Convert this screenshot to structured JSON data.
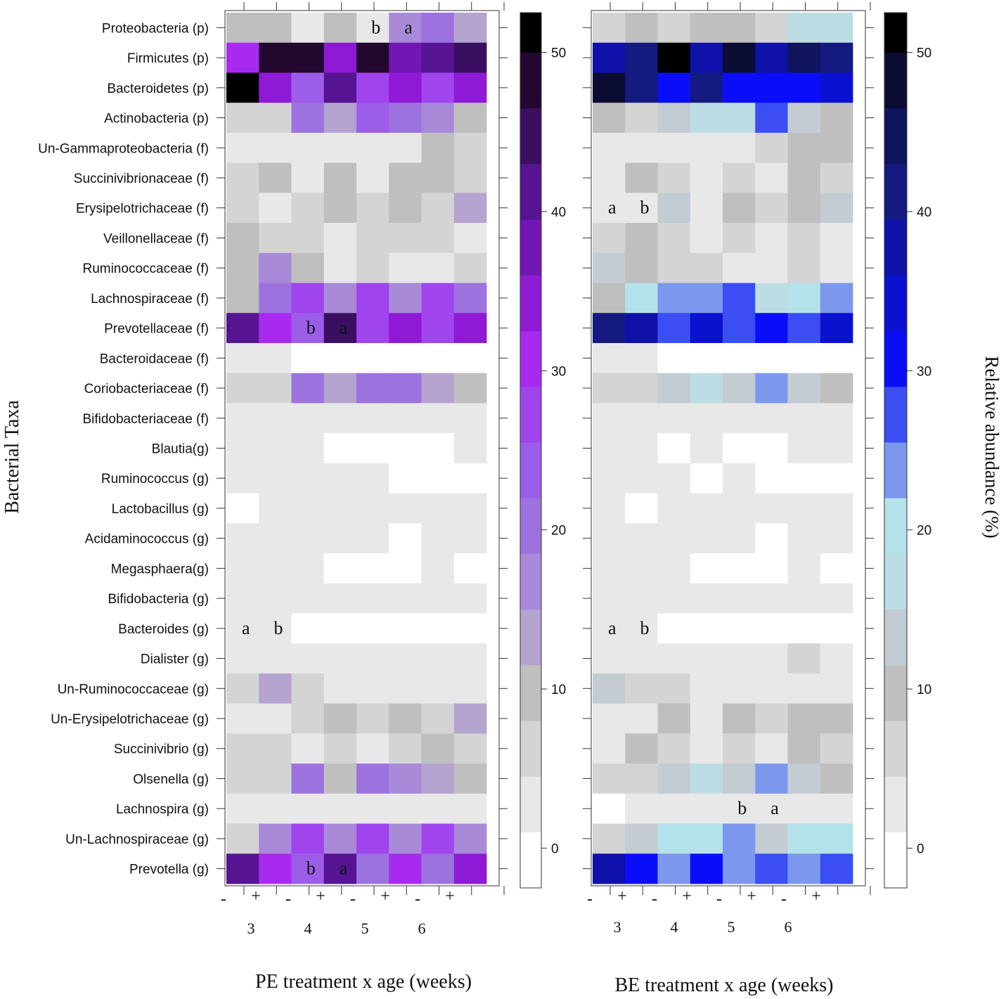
{
  "figure": {
    "ylabel": "Bacterial Taxa",
    "colorbar_label": "Relative abundance (%)"
  },
  "chart_data": [
    {
      "type": "heatmap",
      "panel": "PE",
      "xlabel": "PE treatment x age (weeks)",
      "treatment_signs": [
        "-",
        "+",
        "-",
        "+",
        "-",
        "+",
        "-",
        "+"
      ],
      "age_labels": [
        "3",
        "4",
        "5",
        "6"
      ],
      "colorbar": {
        "range": [
          -2.5,
          52.5
        ],
        "ticks": [
          0,
          10,
          20,
          30,
          40,
          50
        ],
        "bins": [
          {
            "from": -2.5,
            "to": 1,
            "color": "#ffffff"
          },
          {
            "from": 1,
            "to": 4.5,
            "color": "#e8e8e8"
          },
          {
            "from": 4.5,
            "to": 8,
            "color": "#d4d4d4"
          },
          {
            "from": 8,
            "to": 11.5,
            "color": "#bfbfbf"
          },
          {
            "from": 11.5,
            "to": 15,
            "color": "#b5a3d0"
          },
          {
            "from": 15,
            "to": 18.5,
            "color": "#a88ad8"
          },
          {
            "from": 18.5,
            "to": 22,
            "color": "#9c72de"
          },
          {
            "from": 22,
            "to": 25.5,
            "color": "#9c5de8"
          },
          {
            "from": 25.5,
            "to": 29,
            "color": "#a044ee"
          },
          {
            "from": 29,
            "to": 32.5,
            "color": "#a82af0"
          },
          {
            "from": 32.5,
            "to": 36,
            "color": "#8f1ad6"
          },
          {
            "from": 36,
            "to": 39.5,
            "color": "#7216b6"
          },
          {
            "from": 39.5,
            "to": 43,
            "color": "#561492"
          },
          {
            "from": 43,
            "to": 46.5,
            "color": "#3a0f62"
          },
          {
            "from": 46.5,
            "to": 50,
            "color": "#22082e"
          },
          {
            "from": 50,
            "to": 52.5,
            "color": "#000000"
          }
        ]
      },
      "rows": [
        {
          "taxon": "Proteobacteria (p)",
          "values": [
            9,
            10,
            3,
            10,
            2,
            18,
            19,
            14
          ],
          "annotations": [
            "",
            "",
            "",
            "",
            "b",
            "a",
            "",
            ""
          ]
        },
        {
          "taxon": "Firmicutes (p)",
          "values": [
            30,
            48,
            47,
            35,
            48,
            36,
            40,
            45
          ],
          "annotations": []
        },
        {
          "taxon": "Bacteroidetes (p)",
          "values": [
            51,
            35,
            25,
            40,
            26,
            33,
            27,
            33
          ],
          "annotations": []
        },
        {
          "taxon": "Actinobacteria (p)",
          "values": [
            6,
            6,
            20,
            14,
            24,
            21,
            17,
            10
          ],
          "annotations": []
        },
        {
          "taxon": "Un-Gammaproteobacteria (f)",
          "values": [
            3,
            3,
            3,
            3,
            3,
            3,
            10,
            6
          ],
          "annotations": []
        },
        {
          "taxon": "Succinivibrionaceae (f)",
          "values": [
            6,
            10,
            3,
            10,
            3,
            10,
            10,
            6
          ],
          "annotations": []
        },
        {
          "taxon": "Erysipelotrichaceae (f)",
          "values": [
            6,
            3,
            6,
            10,
            6,
            10,
            6,
            14
          ],
          "annotations": []
        },
        {
          "taxon": "Veillonellaceae (f)",
          "values": [
            10,
            6,
            6,
            3,
            6,
            6,
            6,
            3
          ],
          "annotations": []
        },
        {
          "taxon": "Ruminococcaceae (f)",
          "values": [
            10,
            18,
            10,
            3,
            6,
            3,
            3,
            6
          ],
          "annotations": []
        },
        {
          "taxon": "Lachnospiraceae (f)",
          "values": [
            10,
            21,
            26,
            18,
            27,
            18,
            27,
            21
          ],
          "annotations": []
        },
        {
          "taxon": "Prevotellaceae (f)",
          "values": [
            42,
            30,
            25,
            45,
            28,
            35,
            28,
            33
          ],
          "annotations": [
            "",
            "",
            "b",
            "a",
            "",
            "",
            "",
            ""
          ]
        },
        {
          "taxon": "Bacteroidaceae (f)",
          "values": [
            3,
            3,
            0,
            0,
            0,
            0,
            0,
            0
          ],
          "annotations": []
        },
        {
          "taxon": "Coriobacteriaceae (f)",
          "values": [
            6,
            6,
            20,
            14,
            21,
            20,
            14,
            10
          ],
          "annotations": []
        },
        {
          "taxon": "Bifidobacteriaceae (f)",
          "values": [
            3,
            3,
            3,
            3,
            3,
            3,
            3,
            3
          ],
          "annotations": []
        },
        {
          "taxon": "Blautia(g)",
          "values": [
            3,
            3,
            3,
            0,
            0,
            0,
            0,
            3
          ],
          "annotations": []
        },
        {
          "taxon": "Ruminococcus (g)",
          "values": [
            3,
            3,
            3,
            3,
            3,
            0,
            0,
            0
          ],
          "annotations": []
        },
        {
          "taxon": "Lactobacillus (g)",
          "values": [
            0,
            3,
            3,
            3,
            3,
            3,
            3,
            3
          ],
          "annotations": []
        },
        {
          "taxon": "Acidaminococcus (g)",
          "values": [
            3,
            3,
            3,
            3,
            3,
            0,
            3,
            3
          ],
          "annotations": []
        },
        {
          "taxon": "Megasphaera(g)",
          "values": [
            3,
            3,
            3,
            0,
            0,
            0,
            3,
            0
          ],
          "annotations": []
        },
        {
          "taxon": "Bifidobacteria (g)",
          "values": [
            3,
            3,
            3,
            3,
            3,
            3,
            3,
            3
          ],
          "annotations": []
        },
        {
          "taxon": "Bacteroides (g)",
          "values": [
            3,
            3,
            0,
            0,
            0,
            0,
            0,
            0
          ],
          "annotations": [
            "a",
            "b",
            "",
            "",
            "",
            "",
            "",
            ""
          ]
        },
        {
          "taxon": "Dialister (g)",
          "values": [
            3,
            3,
            3,
            3,
            3,
            3,
            3,
            3
          ],
          "annotations": []
        },
        {
          "taxon": "Un-Ruminococcaceae (g)",
          "values": [
            6,
            14,
            6,
            3,
            3,
            3,
            3,
            3
          ],
          "annotations": []
        },
        {
          "taxon": "Un-Erysipelotrichaceae (g)",
          "values": [
            3,
            3,
            6,
            10,
            6,
            10,
            6,
            14
          ],
          "annotations": []
        },
        {
          "taxon": "Succinivibrio (g)",
          "values": [
            6,
            6,
            3,
            6,
            3,
            6,
            10,
            6
          ],
          "annotations": []
        },
        {
          "taxon": "Olsenella (g)",
          "values": [
            6,
            6,
            21,
            10,
            21,
            18,
            14,
            10
          ],
          "annotations": []
        },
        {
          "taxon": "Lachnospira (g)",
          "values": [
            3,
            3,
            3,
            3,
            3,
            3,
            3,
            3
          ],
          "annotations": []
        },
        {
          "taxon": "Un-Lachnospiraceae (g)",
          "values": [
            6,
            18,
            27,
            18,
            27,
            18,
            27,
            18
          ],
          "annotations": []
        },
        {
          "taxon": "Prevotella (g)",
          "values": [
            40,
            30,
            25,
            40,
            21,
            30,
            20,
            33
          ],
          "annotations": [
            "",
            "",
            "b",
            "a",
            "",
            "",
            "",
            ""
          ]
        }
      ]
    },
    {
      "type": "heatmap",
      "panel": "BE",
      "xlabel": "BE treatment x age (weeks)",
      "treatment_signs": [
        "-",
        "+",
        "-",
        "+",
        "-",
        "+",
        "-",
        "+"
      ],
      "age_labels": [
        "3",
        "4",
        "5",
        "6"
      ],
      "colorbar": {
        "range": [
          -2.5,
          52.5
        ],
        "ticks": [
          0,
          10,
          20,
          30,
          40,
          50
        ],
        "bins": [
          {
            "from": -2.5,
            "to": 1,
            "color": "#ffffff"
          },
          {
            "from": 1,
            "to": 4.5,
            "color": "#e8e8e8"
          },
          {
            "from": 4.5,
            "to": 8,
            "color": "#d4d4d4"
          },
          {
            "from": 8,
            "to": 11.5,
            "color": "#bfbfbf"
          },
          {
            "from": 11.5,
            "to": 15,
            "color": "#c2ccd2"
          },
          {
            "from": 15,
            "to": 18.5,
            "color": "#bcdde3"
          },
          {
            "from": 18.5,
            "to": 22,
            "color": "#b4e2ea"
          },
          {
            "from": 22,
            "to": 25.5,
            "color": "#7c98ee"
          },
          {
            "from": 25.5,
            "to": 29,
            "color": "#3a4ef4"
          },
          {
            "from": 29,
            "to": 32.5,
            "color": "#0a0ef8"
          },
          {
            "from": 32.5,
            "to": 36,
            "color": "#0a12d0"
          },
          {
            "from": 36,
            "to": 39.5,
            "color": "#0e12a8"
          },
          {
            "from": 39.5,
            "to": 43,
            "color": "#141a80"
          },
          {
            "from": 43,
            "to": 46.5,
            "color": "#10145c"
          },
          {
            "from": 46.5,
            "to": 50,
            "color": "#0a0c32"
          },
          {
            "from": 50,
            "to": 52.5,
            "color": "#000000"
          }
        ]
      },
      "rows": [
        {
          "taxon": "Proteobacteria (p)",
          "values": [
            6,
            10,
            6,
            10,
            10,
            6,
            17,
            17
          ],
          "annotations": []
        },
        {
          "taxon": "Firmicutes (p)",
          "values": [
            36,
            41,
            51,
            36,
            48,
            36,
            44,
            41
          ],
          "annotations": []
        },
        {
          "taxon": "Bacteroidetes (p)",
          "values": [
            48,
            41,
            31,
            41,
            31,
            31,
            31,
            34
          ],
          "annotations": []
        },
        {
          "taxon": "Actinobacteria (p)",
          "values": [
            10,
            6,
            14,
            17,
            17,
            27,
            14,
            10
          ],
          "annotations": []
        },
        {
          "taxon": "Un-Gammaproteobacteria (f)",
          "values": [
            3,
            3,
            3,
            3,
            3,
            6,
            10,
            10
          ],
          "annotations": []
        },
        {
          "taxon": "Succinivibrionaceae (f)",
          "values": [
            3,
            10,
            6,
            3,
            6,
            3,
            10,
            6
          ],
          "annotations": []
        },
        {
          "taxon": "Erysipelotrichaceae (f)",
          "values": [
            3,
            3,
            14,
            3,
            10,
            6,
            10,
            14
          ],
          "annotations": [
            "a",
            "b",
            "",
            "",
            "",
            "",
            "",
            ""
          ]
        },
        {
          "taxon": "Veillonellaceae (f)",
          "values": [
            6,
            10,
            6,
            3,
            6,
            3,
            6,
            3
          ],
          "annotations": []
        },
        {
          "taxon": "Ruminococcaceae (f)",
          "values": [
            14,
            10,
            6,
            6,
            3,
            3,
            6,
            3
          ],
          "annotations": []
        },
        {
          "taxon": "Lachnospiraceae (f)",
          "values": [
            10,
            20,
            24,
            24,
            28,
            17,
            20,
            24
          ],
          "annotations": []
        },
        {
          "taxon": "Prevotellaceae (f)",
          "values": [
            42,
            37,
            28,
            34,
            28,
            31,
            28,
            34
          ],
          "annotations": []
        },
        {
          "taxon": "Bacteroidaceae (f)",
          "values": [
            3,
            3,
            0,
            0,
            0,
            0,
            0,
            0
          ],
          "annotations": []
        },
        {
          "taxon": "Coriobacteriaceae (f)",
          "values": [
            6,
            6,
            14,
            17,
            14,
            24,
            14,
            10
          ],
          "annotations": []
        },
        {
          "taxon": "Bifidobacteriaceae (f)",
          "values": [
            3,
            3,
            3,
            3,
            3,
            3,
            3,
            3
          ],
          "annotations": []
        },
        {
          "taxon": "Blautia(g)",
          "values": [
            3,
            3,
            0,
            3,
            0,
            0,
            3,
            3
          ],
          "annotations": []
        },
        {
          "taxon": "Ruminococcus (g)",
          "values": [
            3,
            3,
            3,
            0,
            3,
            0,
            0,
            0
          ],
          "annotations": []
        },
        {
          "taxon": "Lactobacillus (g)",
          "values": [
            3,
            0,
            3,
            3,
            3,
            3,
            3,
            3
          ],
          "annotations": []
        },
        {
          "taxon": "Acidaminococcus (g)",
          "values": [
            3,
            3,
            3,
            3,
            3,
            0,
            3,
            3
          ],
          "annotations": []
        },
        {
          "taxon": "Megasphaera(g)",
          "values": [
            3,
            3,
            3,
            0,
            0,
            0,
            3,
            0
          ],
          "annotations": []
        },
        {
          "taxon": "Bifidobacteria (g)",
          "values": [
            3,
            3,
            3,
            3,
            3,
            3,
            3,
            3
          ],
          "annotations": []
        },
        {
          "taxon": "Bacteroides (g)",
          "values": [
            3,
            3,
            0,
            0,
            0,
            0,
            0,
            0
          ],
          "annotations": [
            "a",
            "b",
            "",
            "",
            "",
            "",
            "",
            ""
          ]
        },
        {
          "taxon": "Dialister (g)",
          "values": [
            3,
            3,
            3,
            3,
            3,
            3,
            6,
            3
          ],
          "annotations": []
        },
        {
          "taxon": "Un-Ruminococcaceae (g)",
          "values": [
            14,
            6,
            6,
            3,
            3,
            3,
            3,
            3
          ],
          "annotations": []
        },
        {
          "taxon": "Un-Erysipelotrichaceae (g)",
          "values": [
            3,
            3,
            10,
            3,
            10,
            6,
            10,
            10
          ],
          "annotations": []
        },
        {
          "taxon": "Succinivibrio (g)",
          "values": [
            3,
            10,
            6,
            3,
            6,
            3,
            10,
            6
          ],
          "annotations": []
        },
        {
          "taxon": "Olsenella (g)",
          "values": [
            6,
            6,
            14,
            17,
            14,
            24,
            14,
            10
          ],
          "annotations": []
        },
        {
          "taxon": "Lachnospira (g)",
          "values": [
            0,
            3,
            3,
            3,
            3,
            3,
            3,
            3
          ],
          "annotations": [
            "",
            "",
            "",
            "",
            "b",
            "a",
            "",
            ""
          ]
        },
        {
          "taxon": "Un-Lachnospiraceae (g)",
          "values": [
            6,
            14,
            20,
            20,
            24,
            14,
            20,
            20
          ],
          "annotations": []
        },
        {
          "taxon": "Prevotella (g)",
          "values": [
            37,
            31,
            24,
            31,
            24,
            28,
            24,
            28
          ],
          "annotations": []
        }
      ]
    }
  ]
}
